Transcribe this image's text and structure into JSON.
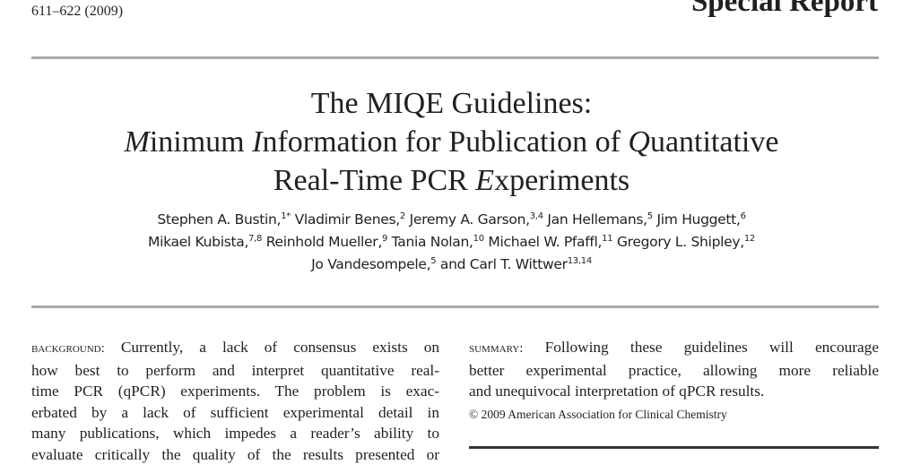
{
  "header": {
    "pages": "611–622 (2009)",
    "section": "Special Report"
  },
  "title": {
    "line1": "The MIQE Guidelines:",
    "line2": [
      {
        "t": "M",
        "i": true
      },
      {
        "t": "inimum ",
        "i": false
      },
      {
        "t": "I",
        "i": true
      },
      {
        "t": "nformation for Publication of ",
        "i": false
      },
      {
        "t": "Q",
        "i": true
      },
      {
        "t": "uantitative",
        "i": false
      }
    ],
    "line3": [
      {
        "t": "Real-Time PCR ",
        "i": false
      },
      {
        "t": "E",
        "i": true
      },
      {
        "t": "xperiments",
        "i": false
      }
    ]
  },
  "authors": [
    [
      {
        "name": "Stephen A. Bustin,",
        "sup": "1*"
      },
      {
        "name": "Vladimir Benes,",
        "sup": "2"
      },
      {
        "name": "Jeremy A. Garson,",
        "sup": "3,4"
      },
      {
        "name": "Jan Hellemans,",
        "sup": "5"
      },
      {
        "name": "Jim Huggett,",
        "sup": "6"
      }
    ],
    [
      {
        "name": "Mikael Kubista,",
        "sup": "7,8"
      },
      {
        "name": "Reinhold Mueller,",
        "sup": "9"
      },
      {
        "name": "Tania Nolan,",
        "sup": "10"
      },
      {
        "name": "Michael W. Pfaffl,",
        "sup": "11"
      },
      {
        "name": "Gregory L. Shipley,",
        "sup": "12"
      }
    ],
    [
      {
        "name": "Jo Vandesompele,",
        "sup": "5"
      },
      {
        "name": "and Carl T. Wittwer",
        "sup": "13,14"
      }
    ]
  ],
  "abstract": {
    "background_label": "Background:",
    "background_lines": [
      " Currently, a lack of consensus exists on",
      "how best to perform and interpret quantitative real-",
      "time PCR (qPCR) experiments. The problem is exac-",
      "erbated by a lack of sufficient experimental detail in",
      "many publications, which impedes a reader’s ability to",
      "evaluate critically the quality of the results presented or"
    ],
    "summary_label": "Summary:",
    "summary_lines": [
      " Following these guidelines will encourage",
      "better experimental practice, allowing more reliable",
      "and unequivocal interpretation of qPCR results."
    ],
    "copyright": "© 2009 American Association for Clinical Chemistry"
  }
}
